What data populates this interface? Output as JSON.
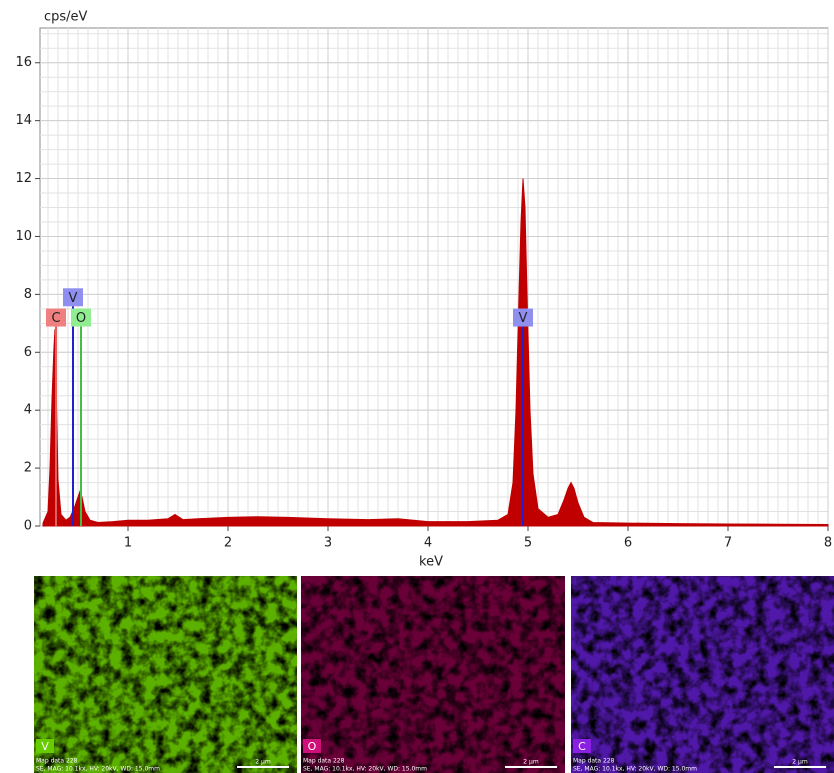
{
  "chart_data": {
    "type": "area",
    "y_label": "cps/eV",
    "x_label": "keV",
    "color": "#c00000",
    "grid": true,
    "xlim": [
      0.12,
      8
    ],
    "ylim": [
      0,
      17.2
    ],
    "xticks": [
      1,
      2,
      3,
      4,
      5,
      6,
      7,
      8
    ],
    "yticks": [
      0,
      2,
      4,
      6,
      8,
      10,
      12,
      14,
      16
    ],
    "x_minor_step": 0.1,
    "y_minor_step": 0.5,
    "x": [
      0.15,
      0.2,
      0.22,
      0.24,
      0.26,
      0.27,
      0.28,
      0.3,
      0.33,
      0.38,
      0.42,
      0.46,
      0.5,
      0.52,
      0.54,
      0.57,
      0.62,
      0.7,
      0.85,
      1.0,
      1.2,
      1.4,
      1.47,
      1.55,
      1.7,
      2.0,
      2.3,
      2.6,
      3.0,
      3.4,
      3.7,
      4.0,
      4.4,
      4.7,
      4.8,
      4.85,
      4.88,
      4.91,
      4.93,
      4.95,
      4.97,
      4.99,
      5.02,
      5.05,
      5.1,
      5.2,
      5.3,
      5.36,
      5.4,
      5.43,
      5.46,
      5.5,
      5.56,
      5.65,
      6.0,
      6.5,
      7.0,
      7.5,
      8.0
    ],
    "values": [
      0.1,
      0.5,
      2.0,
      4.4,
      6.2,
      6.8,
      5.0,
      1.6,
      0.4,
      0.2,
      0.3,
      0.6,
      1.0,
      1.2,
      1.0,
      0.5,
      0.2,
      0.12,
      0.15,
      0.2,
      0.2,
      0.25,
      0.4,
      0.22,
      0.25,
      0.3,
      0.32,
      0.3,
      0.25,
      0.22,
      0.25,
      0.15,
      0.15,
      0.2,
      0.4,
      1.5,
      4.0,
      8.0,
      10.5,
      12.0,
      11.0,
      8.0,
      4.0,
      1.8,
      0.6,
      0.3,
      0.4,
      0.9,
      1.3,
      1.5,
      1.3,
      0.8,
      0.3,
      0.12,
      0.1,
      0.08,
      0.07,
      0.06,
      0.05
    ],
    "peaks": [
      {
        "label": "C",
        "energy": 0.28,
        "height": 7.2,
        "color": "#f08080",
        "line_color": "#e06060"
      },
      {
        "label": "V",
        "energy": 0.45,
        "height": 7.9,
        "color": "#8f8fef",
        "line_color": "#2020d0"
      },
      {
        "label": "O",
        "energy": 0.53,
        "height": 7.2,
        "color": "#90ee90",
        "line_color": "#40c040"
      },
      {
        "label": "V",
        "energy": 4.95,
        "height": 7.2,
        "color": "#8f8fef",
        "line_color": "#2020d0"
      }
    ]
  },
  "maps": [
    {
      "label": "V",
      "color": "#5cb000",
      "badge": "#66cc00",
      "caption": "Map data 228",
      "info": "SE, MAG: 10.1kx, HV: 20kV, WD: 15.0mm",
      "scale": "2 µm"
    },
    {
      "label": "O",
      "color": "#6a0038",
      "badge": "#d0107a",
      "caption": "Map data 228",
      "info": "SE, MAG: 10.1kx, HV: 20kV, WD: 15.0mm",
      "scale": "2 µm"
    },
    {
      "label": "C",
      "color": "#5018a8",
      "badge": "#8a20e0",
      "caption": "Map data 228",
      "info": "SE, MAG: 10.1kx, HV: 20kV, WD: 15.0mm",
      "scale": "2 µm"
    }
  ]
}
